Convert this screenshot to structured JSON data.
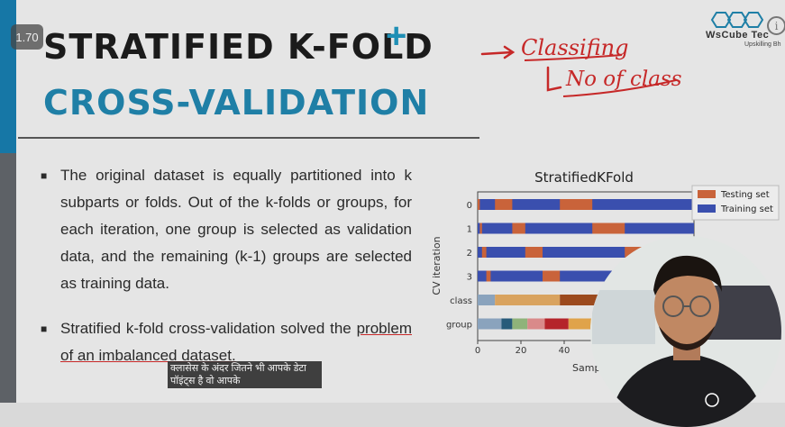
{
  "playback": {
    "speed": "1.70"
  },
  "slide": {
    "title_line1": "STRATIFIED K-FOLD",
    "title_line2": "CROSS-VALIDATION",
    "bullets": [
      "The original dataset is equally partitioned into k subparts or folds. Out of the k-folds or groups, for each iteration, one group is selected as validation data, and the remaining (k-1) groups are selected as training data.",
      "Stratified k-fold cross-validation solved the"
    ],
    "bullet2_tail": "problem of an imbalanced dataset."
  },
  "handwriting": {
    "line1": "Classifing",
    "line2": "No of class"
  },
  "logo": {
    "name": "WsCube Tec",
    "tagline": "Upskilling Bh"
  },
  "subtitle": {
    "line1": "क्लासेस के अंदर जितने भी आपके डेटा",
    "line2": "पॉइंट्स है वो आपके"
  },
  "colors": {
    "testing": "#c9633a",
    "training": "#3a4fae",
    "accent_blue": "#1f7fa6",
    "annotation_red": "#c62828"
  },
  "chart_data": {
    "type": "bar",
    "title": "StratifiedKFold",
    "ylabel": "CV iteration",
    "xlabel": "Sample in",
    "x_ticks": [
      "0",
      "20",
      "40"
    ],
    "xlim": [
      0,
      100
    ],
    "rows": [
      "0",
      "1",
      "2",
      "3",
      "class",
      "group"
    ],
    "legend": [
      {
        "label": "Testing set",
        "color": "#c9633a"
      },
      {
        "label": "Training set",
        "color": "#3a4fae"
      }
    ],
    "legend_position": "top-right",
    "iterations": [
      {
        "row": "0",
        "test_ranges": [
          [
            0,
            1
          ],
          [
            8,
            16
          ],
          [
            38,
            53
          ]
        ]
      },
      {
        "row": "1",
        "test_ranges": [
          [
            1,
            2
          ],
          [
            16,
            22
          ],
          [
            53,
            68
          ]
        ]
      },
      {
        "row": "2",
        "test_ranges": [
          [
            2,
            4
          ],
          [
            22,
            30
          ],
          [
            68,
            82
          ]
        ]
      },
      {
        "row": "3",
        "test_ranges": [
          [
            4,
            6
          ],
          [
            30,
            38
          ],
          [
            82,
            96
          ]
        ]
      }
    ],
    "class_segments": [
      {
        "start": 0,
        "end": 8,
        "color": "#8aa3bd"
      },
      {
        "start": 8,
        "end": 38,
        "color": "#d9a35f"
      },
      {
        "start": 38,
        "end": 100,
        "color": "#9c4a1e"
      }
    ],
    "group_segments": [
      {
        "start": 0,
        "end": 11,
        "color": "#8aa3bd"
      },
      {
        "start": 11,
        "end": 16,
        "color": "#275b7a"
      },
      {
        "start": 16,
        "end": 23,
        "color": "#8fb37a"
      },
      {
        "start": 23,
        "end": 31,
        "color": "#d98a8a"
      },
      {
        "start": 31,
        "end": 42,
        "color": "#b5242a"
      },
      {
        "start": 42,
        "end": 53,
        "color": "#e0a34a"
      },
      {
        "start": 53,
        "end": 100,
        "color": "#7a5a9e"
      }
    ]
  }
}
